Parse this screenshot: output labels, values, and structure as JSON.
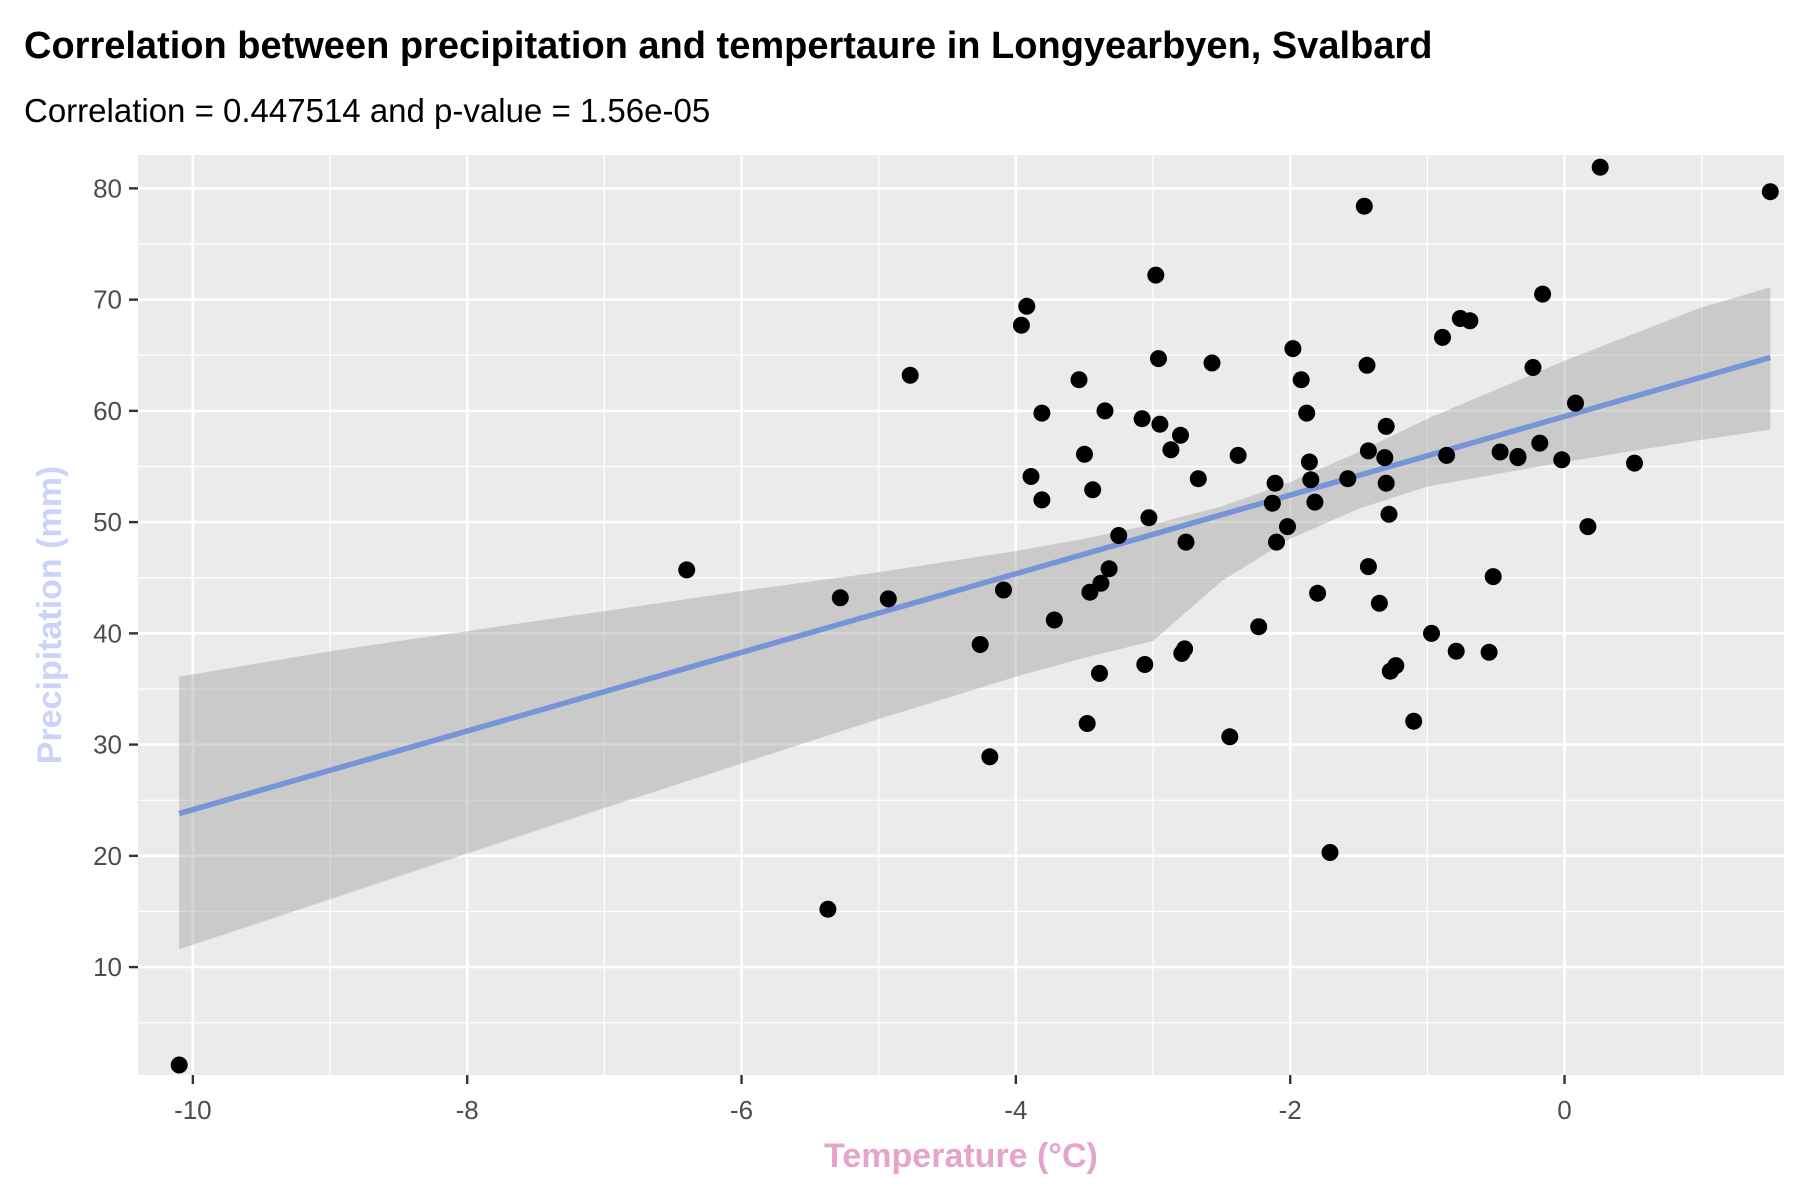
{
  "colors": {
    "panel": "#ebebeb",
    "grid": "#ffffff",
    "point": "#000000",
    "ribbon": "#999999",
    "line": "#7794d8",
    "x_title": "#e6a3cc",
    "y_title": "#ccd3f9",
    "tick_text": "#4d4d4d",
    "tick_mark": "#333333"
  },
  "chart_data": {
    "type": "scatter",
    "title": "Correlation between precipitation and tempertaure in Longyearbyen, Svalbard",
    "subtitle": "Correlation = 0.447514 and p-value = 1.56e-05",
    "xlabel": "Temperature (°C)",
    "ylabel": "Precipitation (mm)",
    "xlim": [
      -10.4,
      1.6
    ],
    "ylim": [
      0.3,
      83.0
    ],
    "x_ticks": [
      -10,
      -8,
      -6,
      -4,
      -2,
      0
    ],
    "x_tick_labels": [
      "-10",
      "-8",
      "-6",
      "-4",
      "-2",
      "0"
    ],
    "y_ticks": [
      10,
      20,
      30,
      40,
      50,
      60,
      70,
      80
    ],
    "y_tick_labels": [
      "10",
      "20",
      "30",
      "40",
      "50",
      "60",
      "70",
      "80"
    ],
    "grid": true,
    "legend": "none",
    "points": [
      [
        -10.1,
        1.2
      ],
      [
        -6.4,
        45.7
      ],
      [
        -5.37,
        15.2
      ],
      [
        -5.28,
        43.2
      ],
      [
        -4.93,
        43.1
      ],
      [
        -4.77,
        63.2
      ],
      [
        -4.26,
        39.0
      ],
      [
        -4.19,
        28.9
      ],
      [
        -4.09,
        43.9
      ],
      [
        -3.96,
        67.7
      ],
      [
        -3.92,
        69.4
      ],
      [
        -3.89,
        54.1
      ],
      [
        -3.81,
        59.8
      ],
      [
        -3.81,
        52.0
      ],
      [
        -3.72,
        41.2
      ],
      [
        -3.54,
        62.8
      ],
      [
        -3.5,
        56.1
      ],
      [
        -3.48,
        31.9
      ],
      [
        -3.46,
        43.7
      ],
      [
        -3.44,
        52.9
      ],
      [
        -3.39,
        36.4
      ],
      [
        -3.38,
        44.5
      ],
      [
        -3.35,
        60.0
      ],
      [
        -3.32,
        45.8
      ],
      [
        -3.25,
        48.8
      ],
      [
        -3.08,
        59.3
      ],
      [
        -3.06,
        37.2
      ],
      [
        -3.03,
        50.4
      ],
      [
        -2.98,
        72.2
      ],
      [
        -2.96,
        64.7
      ],
      [
        -2.95,
        58.8
      ],
      [
        -2.87,
        56.5
      ],
      [
        -2.8,
        57.8
      ],
      [
        -2.79,
        38.2
      ],
      [
        -2.77,
        38.6
      ],
      [
        -2.76,
        48.2
      ],
      [
        -2.67,
        53.9
      ],
      [
        -2.57,
        64.3
      ],
      [
        -2.44,
        30.7
      ],
      [
        -2.38,
        56.0
      ],
      [
        -2.23,
        40.6
      ],
      [
        -2.13,
        51.7
      ],
      [
        -2.11,
        53.5
      ],
      [
        -2.1,
        48.2
      ],
      [
        -2.02,
        49.6
      ],
      [
        -1.98,
        65.6
      ],
      [
        -1.92,
        62.8
      ],
      [
        -1.88,
        59.8
      ],
      [
        -1.86,
        55.4
      ],
      [
        -1.85,
        53.8
      ],
      [
        -1.82,
        51.8
      ],
      [
        -1.8,
        43.6
      ],
      [
        -1.71,
        20.3
      ],
      [
        -1.58,
        53.9
      ],
      [
        -1.46,
        78.4
      ],
      [
        -1.44,
        64.1
      ],
      [
        -1.43,
        46.0
      ],
      [
        -1.43,
        56.4
      ],
      [
        -1.35,
        42.7
      ],
      [
        -1.31,
        55.8
      ],
      [
        -1.3,
        58.6
      ],
      [
        -1.3,
        53.5
      ],
      [
        -1.28,
        50.7
      ],
      [
        -1.27,
        36.6
      ],
      [
        -1.23,
        37.1
      ],
      [
        -1.1,
        32.1
      ],
      [
        -0.97,
        40.0
      ],
      [
        -0.89,
        66.6
      ],
      [
        -0.86,
        56.0
      ],
      [
        -0.79,
        38.4
      ],
      [
        -0.76,
        68.3
      ],
      [
        -0.69,
        68.1
      ],
      [
        -0.55,
        38.3
      ],
      [
        -0.52,
        45.1
      ],
      [
        -0.47,
        56.3
      ],
      [
        -0.34,
        55.9
      ],
      [
        -0.34,
        55.8
      ],
      [
        -0.23,
        63.9
      ],
      [
        -0.18,
        57.1
      ],
      [
        -0.16,
        70.5
      ],
      [
        -0.02,
        55.6
      ],
      [
        0.08,
        60.7
      ],
      [
        0.17,
        49.6
      ],
      [
        0.26,
        81.9
      ],
      [
        0.51,
        55.3
      ],
      [
        1.5,
        79.7
      ]
    ],
    "fit": {
      "x_range": [
        -10.1,
        1.5
      ],
      "y_at_range": [
        23.8,
        64.8
      ],
      "ci_lower": [
        [
          -10.1,
          11.6
        ],
        [
          -9.0,
          16.1
        ],
        [
          -8.0,
          20.2
        ],
        [
          -7.0,
          24.3
        ],
        [
          -6.0,
          28.3
        ],
        [
          -5.0,
          32.3
        ],
        [
          -4.0,
          36.1
        ],
        [
          -3.5,
          37.8
        ],
        [
          -3.0,
          39.3
        ],
        [
          -2.5,
          44.7
        ],
        [
          -2.0,
          48.5
        ],
        [
          -1.5,
          51.2
        ],
        [
          -1.0,
          53.2
        ],
        [
          0.0,
          55.4
        ],
        [
          1.0,
          57.4
        ],
        [
          1.5,
          58.3
        ]
      ],
      "ci_upper": [
        [
          -10.1,
          36.1
        ],
        [
          -9.0,
          38.4
        ],
        [
          -8.0,
          40.2
        ],
        [
          -7.0,
          42.0
        ],
        [
          -6.0,
          43.8
        ],
        [
          -5.0,
          45.5
        ],
        [
          -4.0,
          47.4
        ],
        [
          -3.5,
          48.5
        ],
        [
          -3.0,
          49.8
        ],
        [
          -2.5,
          51.4
        ],
        [
          -2.0,
          53.6
        ],
        [
          -1.5,
          56.3
        ],
        [
          -1.0,
          59.3
        ],
        [
          0.0,
          64.5
        ],
        [
          1.0,
          69.3
        ],
        [
          1.5,
          71.1
        ]
      ]
    }
  }
}
